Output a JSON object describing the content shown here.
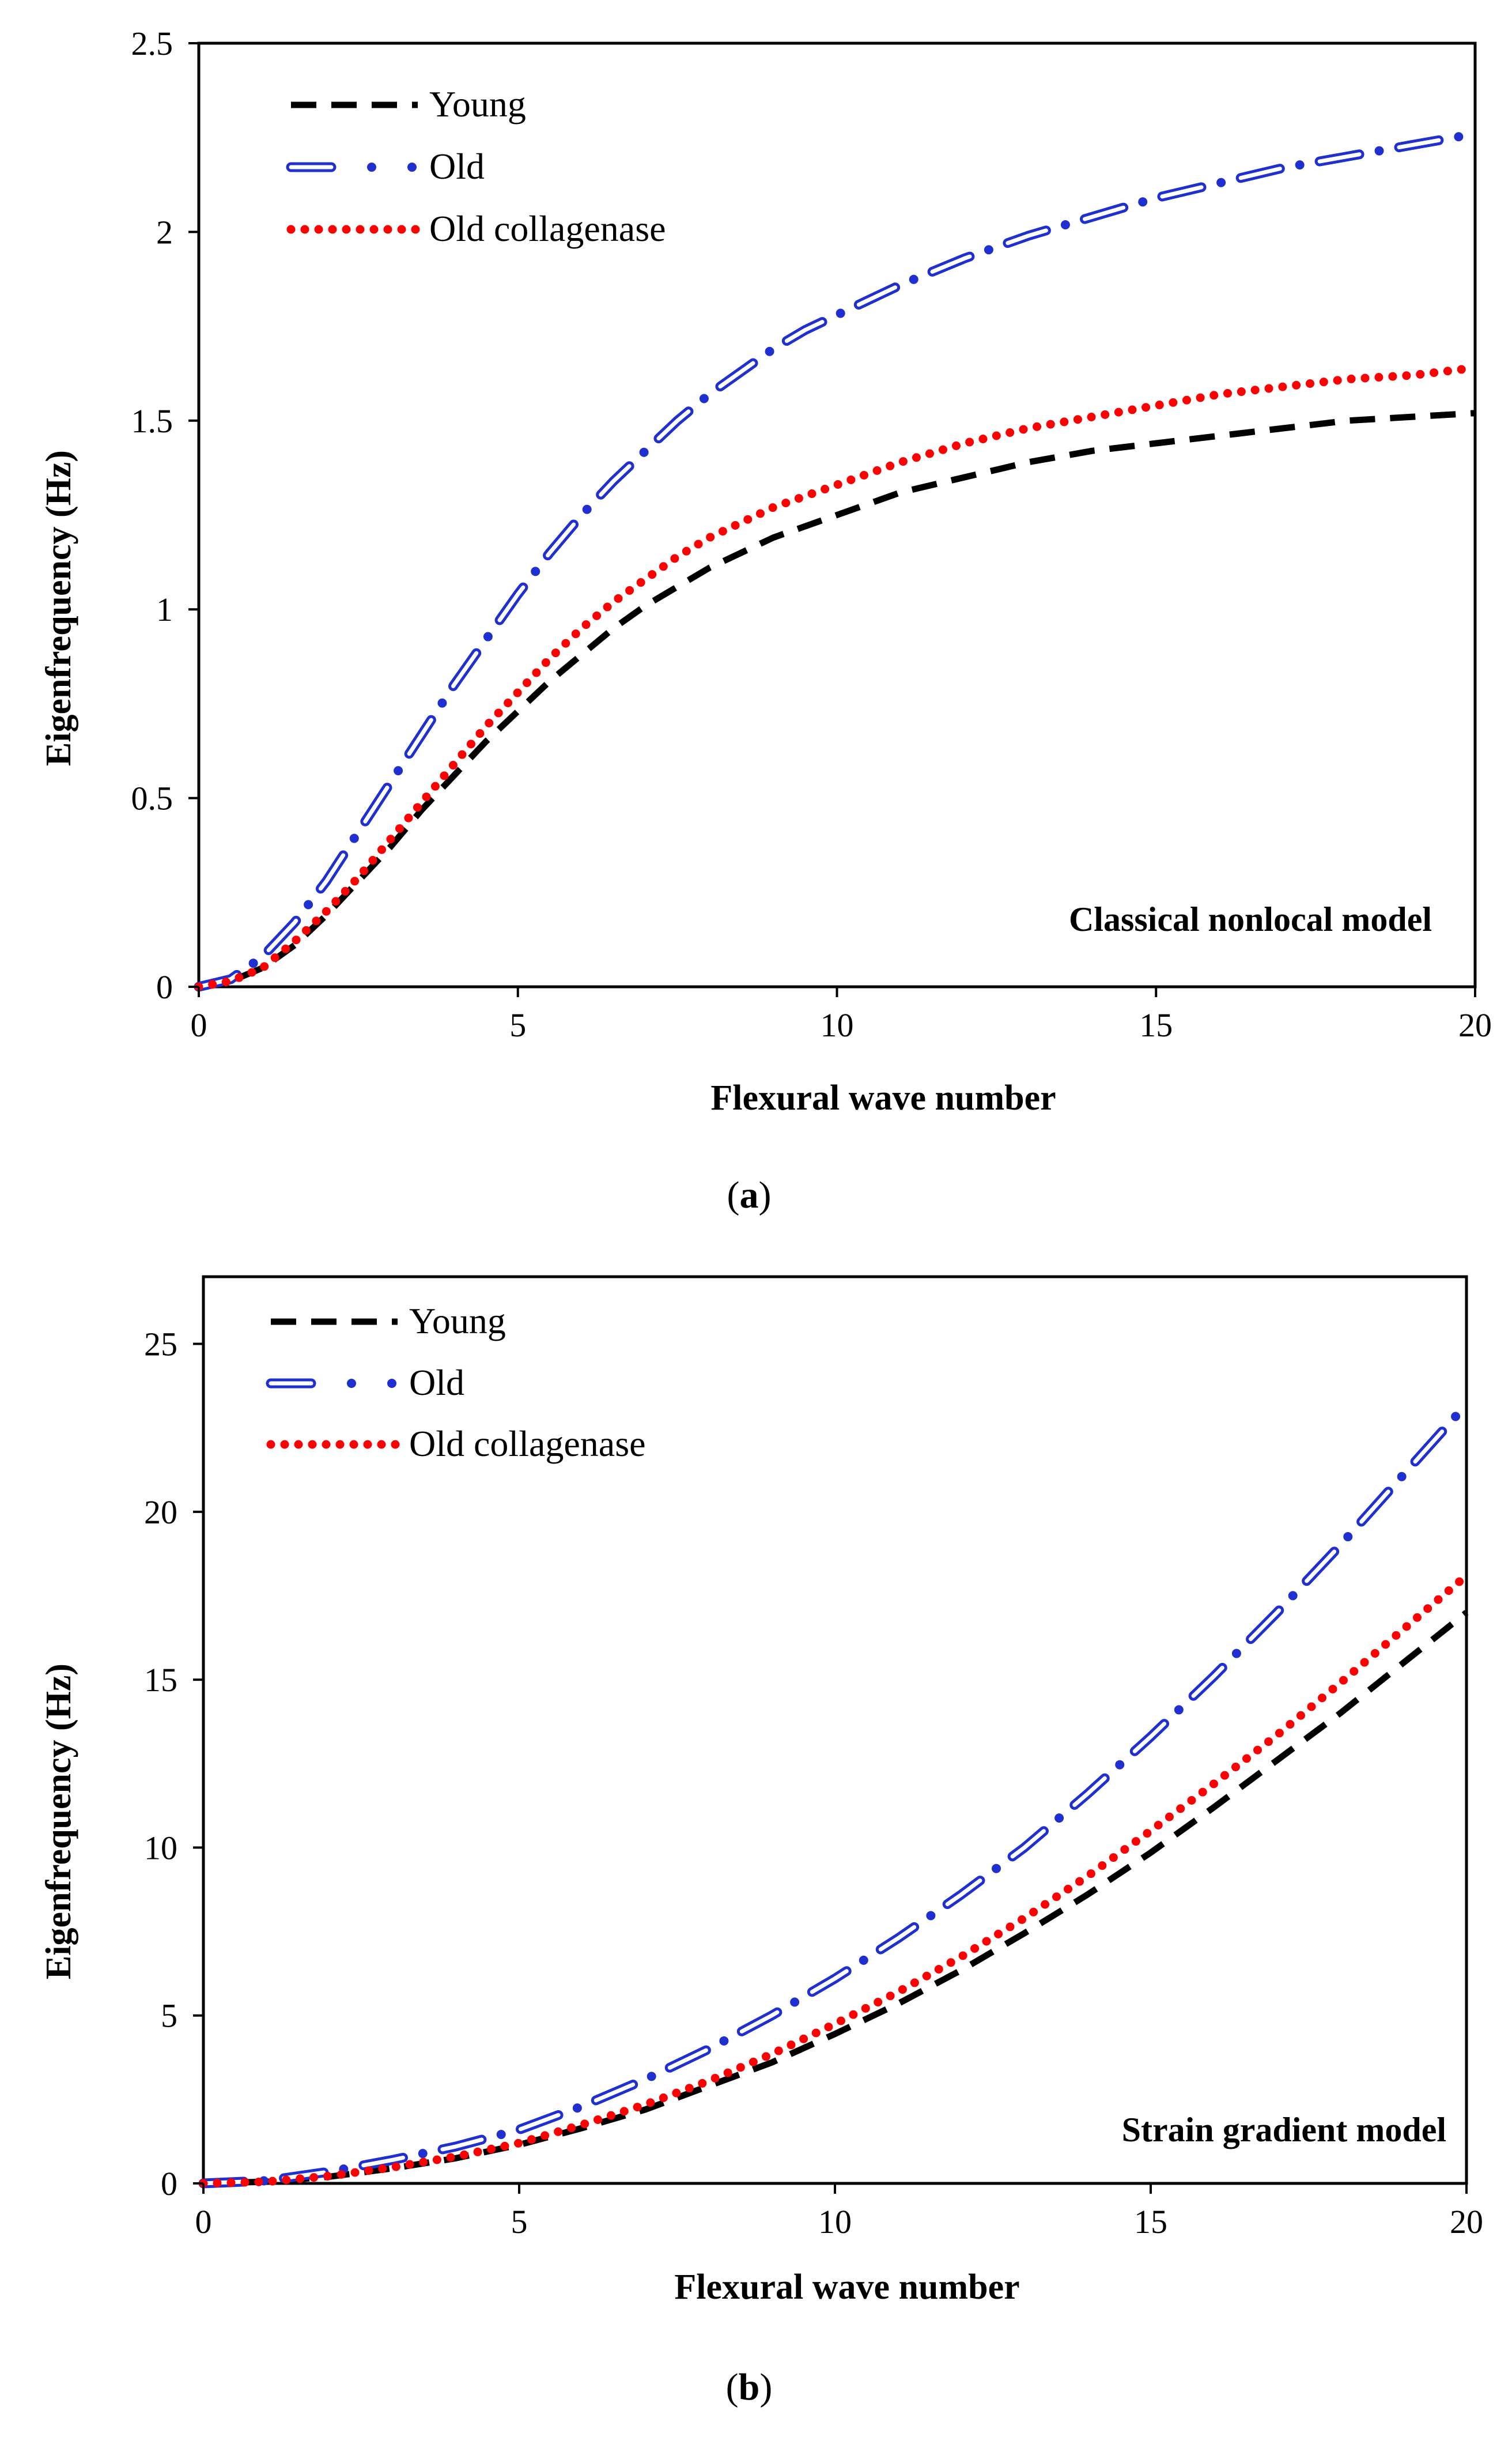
{
  "colors": {
    "young": "#000000",
    "old": "#1f2fd0",
    "old_collagenase": "#ff0000",
    "frame": "#000000"
  },
  "chart_data": [
    {
      "id": "a",
      "type": "line",
      "caption_prefix": "(",
      "caption_letter": "a",
      "caption_suffix": ")",
      "annotation": "Classical nonlocal model",
      "xlabel": "Flexural wave number",
      "ylabel": "Eigenfrequency (Hz)",
      "xlim": [
        0,
        20
      ],
      "ylim": [
        0,
        2.5
      ],
      "xticks": [
        0,
        5,
        10,
        15,
        20
      ],
      "xtick_labels": [
        "0",
        "5",
        "10",
        "15",
        "20"
      ],
      "yticks": [
        0,
        0.5,
        1,
        1.5,
        2,
        2.5
      ],
      "ytick_labels": [
        "0",
        "0.5",
        "1",
        "1.5",
        "2",
        "2.5"
      ],
      "legend_position": "top-left",
      "grid": false,
      "x": [
        0,
        0.5,
        1,
        1.5,
        2,
        2.5,
        3,
        3.5,
        4,
        4.5,
        5,
        5.5,
        6,
        6.5,
        7,
        7.5,
        8,
        8.5,
        9,
        9.5,
        10,
        11,
        12,
        13,
        14,
        15,
        16,
        17,
        18,
        19,
        20
      ],
      "series": [
        {
          "name": "Young",
          "key": "young",
          "style": "dashed",
          "values": [
            0,
            0.015,
            0.05,
            0.11,
            0.19,
            0.28,
            0.37,
            0.47,
            0.56,
            0.65,
            0.73,
            0.81,
            0.88,
            0.95,
            1.01,
            1.06,
            1.11,
            1.15,
            1.19,
            1.22,
            1.25,
            1.31,
            1.35,
            1.39,
            1.42,
            1.44,
            1.46,
            1.48,
            1.5,
            1.51,
            1.52
          ]
        },
        {
          "name": "Old",
          "key": "old",
          "style": "dash-dot",
          "values": [
            0,
            0.02,
            0.08,
            0.17,
            0.28,
            0.41,
            0.54,
            0.67,
            0.8,
            0.92,
            1.04,
            1.15,
            1.25,
            1.34,
            1.42,
            1.5,
            1.57,
            1.63,
            1.69,
            1.74,
            1.78,
            1.86,
            1.93,
            1.99,
            2.04,
            2.09,
            2.13,
            2.17,
            2.2,
            2.23,
            2.26
          ]
        },
        {
          "name": "Old collagenase",
          "key": "old_collagenase",
          "style": "dotted",
          "values": [
            0,
            0.015,
            0.05,
            0.12,
            0.2,
            0.29,
            0.39,
            0.49,
            0.59,
            0.69,
            0.78,
            0.87,
            0.95,
            1.02,
            1.08,
            1.14,
            1.19,
            1.23,
            1.27,
            1.3,
            1.33,
            1.39,
            1.44,
            1.48,
            1.51,
            1.54,
            1.57,
            1.59,
            1.61,
            1.62,
            1.64
          ]
        }
      ]
    },
    {
      "id": "b",
      "type": "line",
      "caption_prefix": "(",
      "caption_letter": "b",
      "caption_suffix": ")",
      "annotation": "Strain gradient model",
      "xlabel": "Flexural wave number",
      "ylabel": "Eigenfrequency (Hz)",
      "xlim": [
        0,
        20
      ],
      "ylim": [
        0,
        27
      ],
      "xticks": [
        0,
        5,
        10,
        15,
        20
      ],
      "xtick_labels": [
        "0",
        "5",
        "10",
        "15",
        "20"
      ],
      "yticks": [
        0,
        5,
        10,
        15,
        20,
        25
      ],
      "ytick_labels": [
        "0",
        "5",
        "10",
        "15",
        "20",
        "25"
      ],
      "legend_position": "top-left",
      "grid": false,
      "x": [
        0,
        1,
        2,
        3,
        4,
        5,
        6,
        7,
        8,
        9,
        10,
        11,
        12,
        13,
        14,
        15,
        16,
        17,
        18,
        19,
        20
      ],
      "series": [
        {
          "name": "Young",
          "key": "young",
          "style": "dashed",
          "values": [
            0,
            0.05,
            0.2,
            0.45,
            0.75,
            1.15,
            1.65,
            2.2,
            2.9,
            3.6,
            4.45,
            5.35,
            6.35,
            7.45,
            8.6,
            9.85,
            11.2,
            12.6,
            14.0,
            15.5,
            17.0
          ]
        },
        {
          "name": "Old",
          "key": "old",
          "style": "dash-dot",
          "values": [
            0,
            0.08,
            0.35,
            0.7,
            1.1,
            1.6,
            2.3,
            3.1,
            4.0,
            5.0,
            6.1,
            7.3,
            8.6,
            10.0,
            11.6,
            13.3,
            15.1,
            17.0,
            19.0,
            21.1,
            23.2
          ]
        },
        {
          "name": "Old collagenase",
          "key": "old_collagenase",
          "style": "dotted",
          "values": [
            0,
            0.05,
            0.22,
            0.48,
            0.8,
            1.2,
            1.75,
            2.35,
            3.05,
            3.85,
            4.75,
            5.7,
            6.75,
            7.9,
            9.15,
            10.5,
            11.9,
            13.35,
            14.9,
            16.5,
            18.1
          ]
        }
      ]
    }
  ]
}
